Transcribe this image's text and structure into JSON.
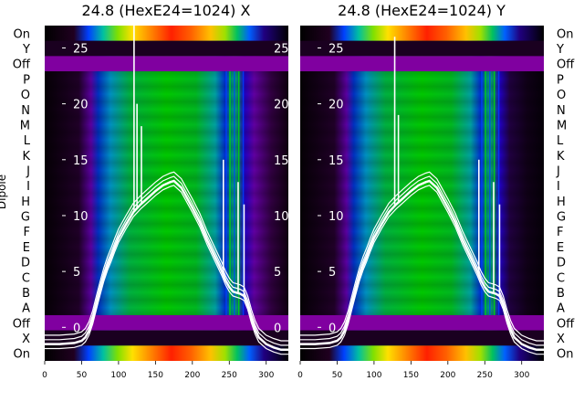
{
  "chart_data": [
    {
      "type": "heatmap",
      "title": "24.8 (HexE24=1024) X",
      "ylabel": "Dipole",
      "xlim": [
        0,
        330
      ],
      "x_ticks": [
        0,
        50,
        100,
        150,
        200,
        250,
        300
      ],
      "row_labels": [
        "On",
        "Y",
        "Off",
        "P",
        "O",
        "N",
        "M",
        "L",
        "K",
        "J",
        "I",
        "H",
        "G",
        "F",
        "E",
        "D",
        "C",
        "B",
        "A",
        "Off",
        "X",
        "On"
      ],
      "overlay_ylim": [
        -3,
        27
      ],
      "overlay_y_ticks": [
        0,
        5,
        10,
        15,
        20,
        25
      ],
      "overlay_curve": {
        "x": [
          0,
          20,
          40,
          50,
          55,
          60,
          65,
          70,
          75,
          80,
          85,
          90,
          95,
          100,
          110,
          120,
          130,
          140,
          150,
          160,
          170,
          175,
          180,
          185,
          190,
          200,
          210,
          220,
          230,
          240,
          245,
          250,
          255,
          260,
          265,
          270,
          275,
          280,
          285,
          290,
          300,
          310,
          320,
          330
        ],
        "y": [
          -1.5,
          -1.5,
          -1.4,
          -1.2,
          -0.9,
          -0.3,
          0.7,
          2.0,
          3.3,
          4.5,
          5.5,
          6.3,
          7.2,
          8.0,
          9.2,
          10.3,
          11.0,
          11.6,
          12.2,
          12.7,
          13.0,
          13.1,
          12.8,
          12.5,
          11.9,
          10.7,
          9.4,
          7.8,
          6.4,
          5.0,
          4.2,
          3.6,
          3.2,
          3.1,
          3.0,
          2.8,
          2.0,
          0.8,
          -0.2,
          -0.9,
          -1.5,
          -1.8,
          -2.0,
          -2.0
        ]
      },
      "overlay_spikes": [
        [
          121,
          27
        ],
        [
          125,
          20
        ],
        [
          131,
          18
        ],
        [
          242,
          15
        ],
        [
          262,
          13
        ],
        [
          270,
          11
        ]
      ]
    },
    {
      "type": "heatmap",
      "title": "24.8 (HexE24=1024) Y",
      "ylabel": "",
      "xlim": [
        0,
        330
      ],
      "x_ticks": [
        0,
        50,
        100,
        150,
        200,
        250,
        300
      ],
      "row_labels": [
        "On",
        "Y",
        "Off",
        "P",
        "O",
        "N",
        "M",
        "L",
        "K",
        "J",
        "I",
        "H",
        "G",
        "F",
        "E",
        "D",
        "C",
        "B",
        "A",
        "Off",
        "X",
        "On"
      ],
      "overlay_ylim": [
        -3,
        27
      ],
      "overlay_y_ticks": [
        0,
        5,
        10,
        15,
        20,
        25
      ],
      "overlay_curve": {
        "x": [
          0,
          20,
          40,
          50,
          55,
          60,
          65,
          70,
          75,
          80,
          85,
          90,
          95,
          100,
          110,
          120,
          130,
          140,
          150,
          160,
          170,
          175,
          180,
          185,
          190,
          200,
          210,
          220,
          230,
          240,
          245,
          250,
          255,
          260,
          265,
          270,
          275,
          280,
          285,
          290,
          300,
          310,
          320,
          330
        ],
        "y": [
          -1.5,
          -1.5,
          -1.4,
          -1.2,
          -0.9,
          -0.3,
          0.7,
          2.0,
          3.3,
          4.5,
          5.5,
          6.3,
          7.2,
          8.0,
          9.2,
          10.3,
          11.0,
          11.6,
          12.2,
          12.7,
          13.0,
          13.1,
          12.8,
          12.5,
          11.9,
          10.7,
          9.4,
          7.8,
          6.4,
          5.0,
          4.2,
          3.6,
          3.2,
          3.1,
          3.0,
          2.8,
          2.0,
          0.8,
          -0.2,
          -0.9,
          -1.5,
          -1.8,
          -2.0,
          -2.0
        ]
      },
      "overlay_spikes": [
        [
          128,
          26
        ],
        [
          133,
          19
        ],
        [
          242,
          15
        ],
        [
          262,
          13
        ],
        [
          270,
          11
        ]
      ]
    }
  ],
  "colors": {
    "stripe_purple": "#8000a0",
    "dark_band": "#1a0020",
    "curve": "#ffffff"
  }
}
